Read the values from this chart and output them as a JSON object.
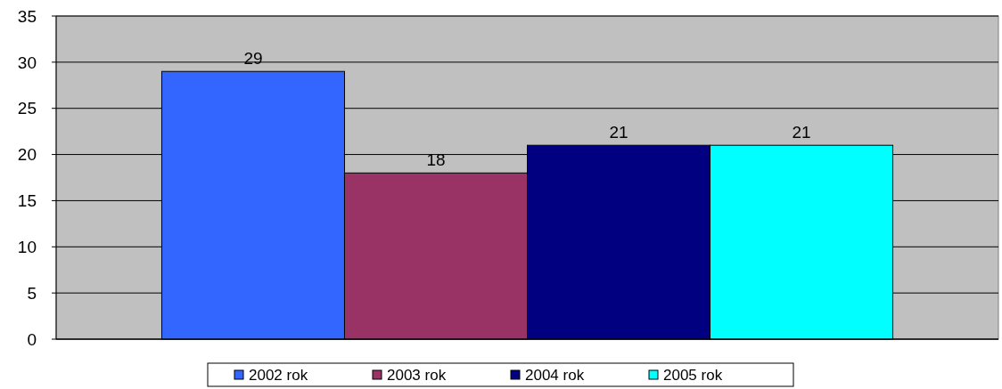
{
  "chart_data": {
    "type": "bar",
    "categories": [
      null
    ],
    "series": [
      {
        "name": "2002 rok",
        "color": "#3366ff",
        "values": [
          29
        ]
      },
      {
        "name": "2003 rok",
        "color": "#993366",
        "values": [
          18
        ]
      },
      {
        "name": "2004 rok",
        "color": "#000080",
        "values": [
          21
        ]
      },
      {
        "name": "2005 rok",
        "color": "#00ffff",
        "values": [
          21
        ]
      }
    ],
    "ylim": [
      0,
      35
    ],
    "yticks": [
      0,
      5,
      10,
      15,
      20,
      25,
      30,
      35
    ],
    "grid": "y",
    "legend": "bottom",
    "data_labels": true
  }
}
